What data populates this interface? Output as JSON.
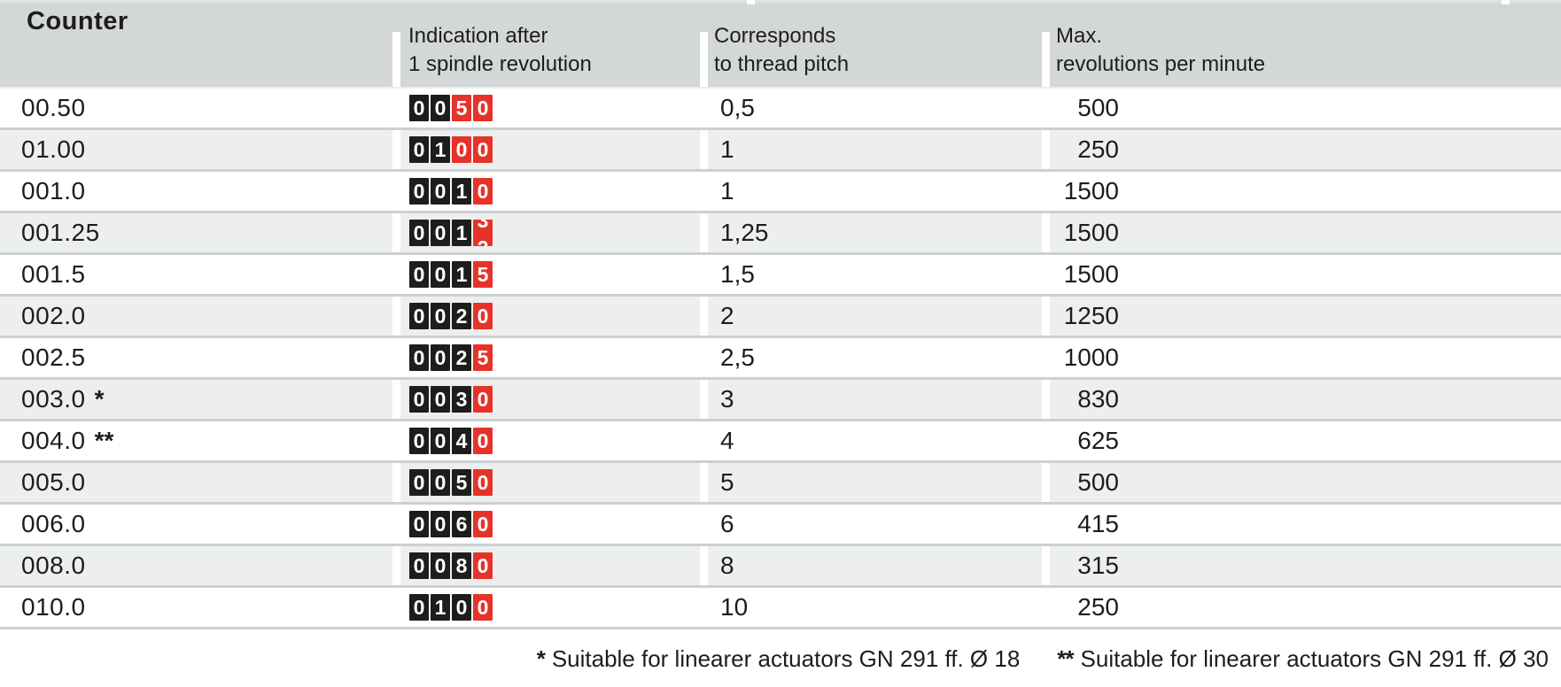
{
  "page": {
    "title": "Counter"
  },
  "table": {
    "columns": [
      {
        "line1": "Indication after",
        "line2": "1 spindle revolution"
      },
      {
        "line1": "Corresponds",
        "line2": "to thread pitch"
      },
      {
        "line1": "Max.",
        "line2": "revolutions per minute"
      }
    ],
    "rows": [
      {
        "counter": "00.50",
        "note": "",
        "display": [
          {
            "d": "0",
            "c": "black"
          },
          {
            "d": "0",
            "c": "black"
          },
          {
            "d": "5",
            "c": "red"
          },
          {
            "d": "0",
            "c": "red"
          }
        ],
        "pitch": "0,5",
        "rpm": "500"
      },
      {
        "counter": "01.00",
        "note": "",
        "display": [
          {
            "d": "0",
            "c": "black"
          },
          {
            "d": "1",
            "c": "black"
          },
          {
            "d": "0",
            "c": "red"
          },
          {
            "d": "0",
            "c": "red"
          }
        ],
        "pitch": "1",
        "rpm": "250"
      },
      {
        "counter": "001.0",
        "note": "",
        "display": [
          {
            "d": "0",
            "c": "black"
          },
          {
            "d": "0",
            "c": "black"
          },
          {
            "d": "1",
            "c": "black"
          },
          {
            "d": "0",
            "c": "red"
          }
        ],
        "pitch": "1",
        "rpm": "1500"
      },
      {
        "counter": "001.25",
        "note": "",
        "display": [
          {
            "d": "0",
            "c": "black"
          },
          {
            "d": "0",
            "c": "black"
          },
          {
            "d": "1",
            "c": "black"
          },
          {
            "c": "red",
            "roll_from": "2",
            "roll_to": "3"
          }
        ],
        "pitch": "1,25",
        "rpm": "1500"
      },
      {
        "counter": "001.5",
        "note": "",
        "display": [
          {
            "d": "0",
            "c": "black"
          },
          {
            "d": "0",
            "c": "black"
          },
          {
            "d": "1",
            "c": "black"
          },
          {
            "d": "5",
            "c": "red"
          }
        ],
        "pitch": "1,5",
        "rpm": "1500"
      },
      {
        "counter": "002.0",
        "note": "",
        "display": [
          {
            "d": "0",
            "c": "black"
          },
          {
            "d": "0",
            "c": "black"
          },
          {
            "d": "2",
            "c": "black"
          },
          {
            "d": "0",
            "c": "red"
          }
        ],
        "pitch": "2",
        "rpm": "1250"
      },
      {
        "counter": "002.5",
        "note": "",
        "display": [
          {
            "d": "0",
            "c": "black"
          },
          {
            "d": "0",
            "c": "black"
          },
          {
            "d": "2",
            "c": "black"
          },
          {
            "d": "5",
            "c": "red"
          }
        ],
        "pitch": "2,5",
        "rpm": "1000"
      },
      {
        "counter": "003.0",
        "note": "*",
        "display": [
          {
            "d": "0",
            "c": "black"
          },
          {
            "d": "0",
            "c": "black"
          },
          {
            "d": "3",
            "c": "black"
          },
          {
            "d": "0",
            "c": "red"
          }
        ],
        "pitch": "3",
        "rpm": "830"
      },
      {
        "counter": "004.0",
        "note": "**",
        "display": [
          {
            "d": "0",
            "c": "black"
          },
          {
            "d": "0",
            "c": "black"
          },
          {
            "d": "4",
            "c": "black"
          },
          {
            "d": "0",
            "c": "red"
          }
        ],
        "pitch": "4",
        "rpm": "625"
      },
      {
        "counter": "005.0",
        "note": "",
        "display": [
          {
            "d": "0",
            "c": "black"
          },
          {
            "d": "0",
            "c": "black"
          },
          {
            "d": "5",
            "c": "black"
          },
          {
            "d": "0",
            "c": "red"
          }
        ],
        "pitch": "5",
        "rpm": "500"
      },
      {
        "counter": "006.0",
        "note": "",
        "display": [
          {
            "d": "0",
            "c": "black"
          },
          {
            "d": "0",
            "c": "black"
          },
          {
            "d": "6",
            "c": "black"
          },
          {
            "d": "0",
            "c": "red"
          }
        ],
        "pitch": "6",
        "rpm": "415"
      },
      {
        "counter": "008.0",
        "note": "",
        "display": [
          {
            "d": "0",
            "c": "black"
          },
          {
            "d": "0",
            "c": "black"
          },
          {
            "d": "8",
            "c": "black"
          },
          {
            "d": "0",
            "c": "red"
          }
        ],
        "pitch": "8",
        "rpm": "315"
      },
      {
        "counter": "010.0",
        "note": "",
        "display": [
          {
            "d": "0",
            "c": "black"
          },
          {
            "d": "1",
            "c": "black"
          },
          {
            "d": "0",
            "c": "black"
          },
          {
            "d": "0",
            "c": "red"
          }
        ],
        "pitch": "10",
        "rpm": "250"
      }
    ]
  },
  "footnotes": [
    {
      "marker": "*",
      "text": "Suitable for linearer actuators GN 291 ff. Ø 18"
    },
    {
      "marker": "**",
      "text": "Suitable for linearer actuators GN 291 ff. Ø 30"
    }
  ],
  "colors": {
    "digit_black": "#1d1d1b",
    "digit_red": "#e6332a",
    "header_gray": "#d4d7d7",
    "row_alt_gray": "#edefef",
    "separator_gray": "#cbd0d0",
    "text": "#1d1d1b"
  }
}
